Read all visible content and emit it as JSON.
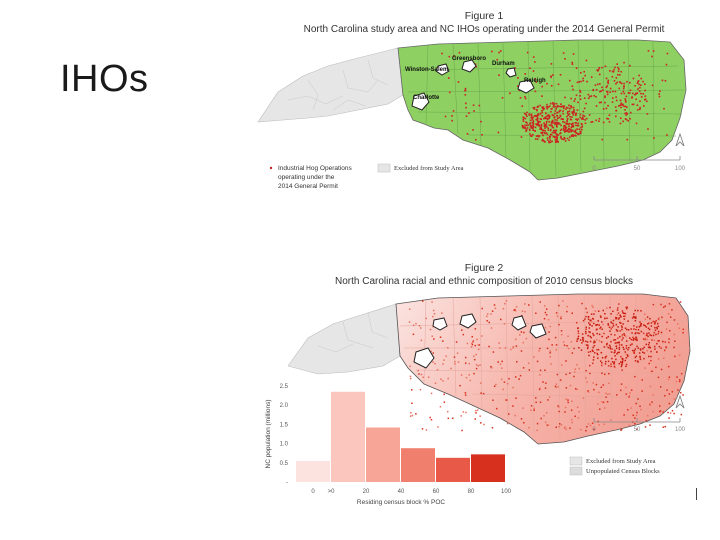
{
  "slide": {
    "title": "IHOs"
  },
  "figure1": {
    "label": "Figure 1",
    "caption": "North Carolina study area and NC IHOs operating under the 2014 General Permit",
    "cities": [
      "Greensboro",
      "Winston-Salem",
      "Durham",
      "Raleigh",
      "Charlotte"
    ],
    "legend": {
      "ihos_line1": "Industrial Hog Operations",
      "ihos_line2": "operating under the",
      "ihos_line3": "2014 General Permit",
      "excluded": "Excluded from Study Area"
    },
    "scalebar": [
      "0",
      "50",
      "100"
    ],
    "colors": {
      "study_area": "#8ed162",
      "excluded": "#e6e6e6",
      "iho": "#cc2222"
    }
  },
  "figure2": {
    "label": "Figure 2",
    "caption": "North Carolina racial and ethnic composition of 2010 census blocks",
    "legend": {
      "excluded": "Excluded from Study Area",
      "unpopulated": "Unpopulated Census Blocks"
    },
    "scalebar": [
      "0",
      "50",
      "100"
    ],
    "colors": {
      "low": "#fbe4e1",
      "high": "#d7301f",
      "excluded": "#e6e6e6"
    }
  },
  "chart_data": {
    "type": "bar",
    "xlabel": "Residing census block % POC",
    "ylabel": "NC population (millions)",
    "x_ticks": [
      "0",
      ">0",
      "20",
      "40",
      "60",
      "80",
      "100"
    ],
    "y_ticks": [
      "-",
      "0.5",
      "1.0",
      "1.5",
      "2.0",
      "2.5"
    ],
    "ylim": [
      0,
      2.5
    ],
    "categories": [
      "0",
      ">0-20",
      "20-40",
      "40-60",
      "60-80",
      "80-100"
    ],
    "values": [
      0.55,
      2.35,
      1.42,
      0.88,
      0.63,
      0.72
    ],
    "colors": [
      "#fde3df",
      "#fbc6bd",
      "#f6a597",
      "#f07f6e",
      "#e85a47",
      "#d7301f"
    ]
  }
}
